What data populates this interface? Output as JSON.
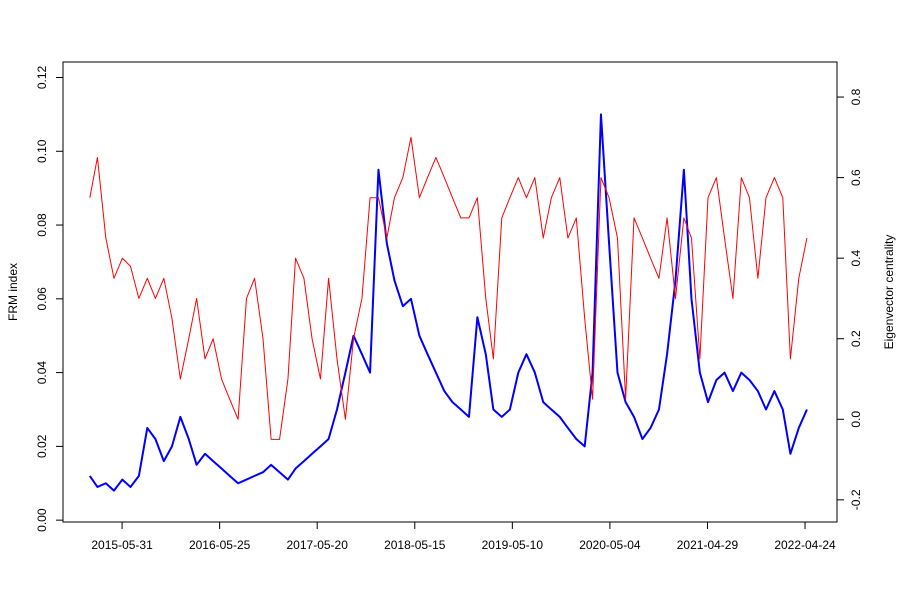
{
  "chart_data": {
    "type": "line",
    "y_label": "FRM index",
    "y2_label": "Eigenvector centrality",
    "x": [
      "2015-02-01",
      "2015-03-01",
      "2015-04-01",
      "2015-05-01",
      "2015-06-01",
      "2015-07-01",
      "2015-08-01",
      "2015-09-01",
      "2015-10-01",
      "2015-11-01",
      "2015-12-01",
      "2016-01-01",
      "2016-02-01",
      "2016-03-01",
      "2016-04-01",
      "2016-05-01",
      "2016-06-01",
      "2016-07-01",
      "2016-08-01",
      "2016-09-01",
      "2016-10-01",
      "2016-11-01",
      "2016-12-01",
      "2017-01-01",
      "2017-02-01",
      "2017-03-01",
      "2017-04-01",
      "2017-05-01",
      "2017-06-01",
      "2017-07-01",
      "2017-08-01",
      "2017-09-01",
      "2017-10-01",
      "2017-11-01",
      "2017-12-01",
      "2018-01-01",
      "2018-02-01",
      "2018-03-01",
      "2018-04-01",
      "2018-05-01",
      "2018-06-01",
      "2018-07-01",
      "2018-08-01",
      "2018-09-01",
      "2018-10-01",
      "2018-11-01",
      "2018-12-01",
      "2019-01-01",
      "2019-02-01",
      "2019-03-01",
      "2019-04-01",
      "2019-05-01",
      "2019-06-01",
      "2019-07-01",
      "2019-08-01",
      "2019-09-01",
      "2019-10-01",
      "2019-11-01",
      "2019-12-01",
      "2020-01-01",
      "2020-02-01",
      "2020-03-01",
      "2020-04-01",
      "2020-05-01",
      "2020-06-01",
      "2020-07-01",
      "2020-08-01",
      "2020-09-01",
      "2020-10-01",
      "2020-11-01",
      "2020-12-01",
      "2021-01-01",
      "2021-02-01",
      "2021-03-01",
      "2021-04-01",
      "2021-05-01",
      "2021-06-01",
      "2021-07-01",
      "2021-08-01",
      "2021-09-01",
      "2021-10-01",
      "2021-11-01",
      "2021-12-01",
      "2022-01-01",
      "2022-02-01",
      "2022-03-01",
      "2022-04-01",
      "2022-05-01"
    ],
    "series": [
      {
        "name": "FRM index",
        "color": "#0000ff",
        "axis": "y",
        "values": [
          0.012,
          0.009,
          0.01,
          0.008,
          0.011,
          0.009,
          0.012,
          0.025,
          0.022,
          0.016,
          0.02,
          0.028,
          0.022,
          0.015,
          0.018,
          0.016,
          0.014,
          0.012,
          0.01,
          0.011,
          0.012,
          0.013,
          0.015,
          0.013,
          0.011,
          0.014,
          0.016,
          0.018,
          0.02,
          0.022,
          0.03,
          0.04,
          0.05,
          0.045,
          0.04,
          0.095,
          0.075,
          0.065,
          0.058,
          0.06,
          0.05,
          0.045,
          0.04,
          0.035,
          0.032,
          0.03,
          0.028,
          0.055,
          0.045,
          0.03,
          0.028,
          0.03,
          0.04,
          0.045,
          0.04,
          0.032,
          0.03,
          0.028,
          0.025,
          0.022,
          0.02,
          0.04,
          0.11,
          0.075,
          0.04,
          0.032,
          0.028,
          0.022,
          0.025,
          0.03,
          0.045,
          0.065,
          0.095,
          0.06,
          0.04,
          0.032,
          0.038,
          0.04,
          0.035,
          0.04,
          0.038,
          0.035,
          0.03,
          0.035,
          0.03,
          0.018,
          0.025,
          0.03
        ]
      },
      {
        "name": "Eigenvector centrality",
        "color": "#ff0000",
        "axis": "y2",
        "values": [
          0.55,
          0.65,
          0.45,
          0.35,
          0.4,
          0.38,
          0.3,
          0.35,
          0.3,
          0.35,
          0.25,
          0.1,
          0.2,
          0.3,
          0.15,
          0.2,
          0.1,
          0.05,
          0.0,
          0.3,
          0.35,
          0.2,
          -0.05,
          -0.05,
          0.1,
          0.4,
          0.35,
          0.2,
          0.1,
          0.35,
          0.15,
          0.0,
          0.2,
          0.3,
          0.55,
          0.55,
          0.45,
          0.55,
          0.6,
          0.7,
          0.55,
          0.6,
          0.65,
          0.6,
          0.55,
          0.5,
          0.5,
          0.55,
          0.3,
          0.15,
          0.5,
          0.55,
          0.6,
          0.55,
          0.6,
          0.45,
          0.55,
          0.6,
          0.45,
          0.5,
          0.25,
          0.05,
          0.6,
          0.55,
          0.45,
          0.05,
          0.5,
          0.45,
          0.4,
          0.35,
          0.5,
          0.3,
          0.5,
          0.45,
          0.15,
          0.55,
          0.6,
          0.45,
          0.3,
          0.6,
          0.55,
          0.35,
          0.55,
          0.6,
          0.55,
          0.15,
          0.35,
          0.45
        ]
      }
    ],
    "xlim": [
      "2014-10-25",
      "2022-08-20"
    ],
    "xticks": [
      "2015-05-31",
      "2016-05-25",
      "2017-05-20",
      "2018-05-15",
      "2019-05-10",
      "2020-05-04",
      "2021-04-29",
      "2022-04-24"
    ],
    "ylim": [
      -0.0005,
      0.1242
    ],
    "yticks": [
      {
        "value": 0,
        "label": "0.00"
      },
      {
        "value": 0.02,
        "label": "0.02"
      },
      {
        "value": 0.04,
        "label": "0.04"
      },
      {
        "value": 0.06,
        "label": "0.06"
      },
      {
        "value": 0.08,
        "label": "0.08"
      },
      {
        "value": 0.1,
        "label": "0.10"
      },
      {
        "value": 0.12,
        "label": "0.12"
      }
    ],
    "y2lim": [
      -0.255,
      0.887
    ],
    "y2ticks": [
      -0.2,
      {
        "value": 0,
        "label": "0.0"
      },
      0.2,
      0.4,
      0.6,
      0.8
    ]
  }
}
